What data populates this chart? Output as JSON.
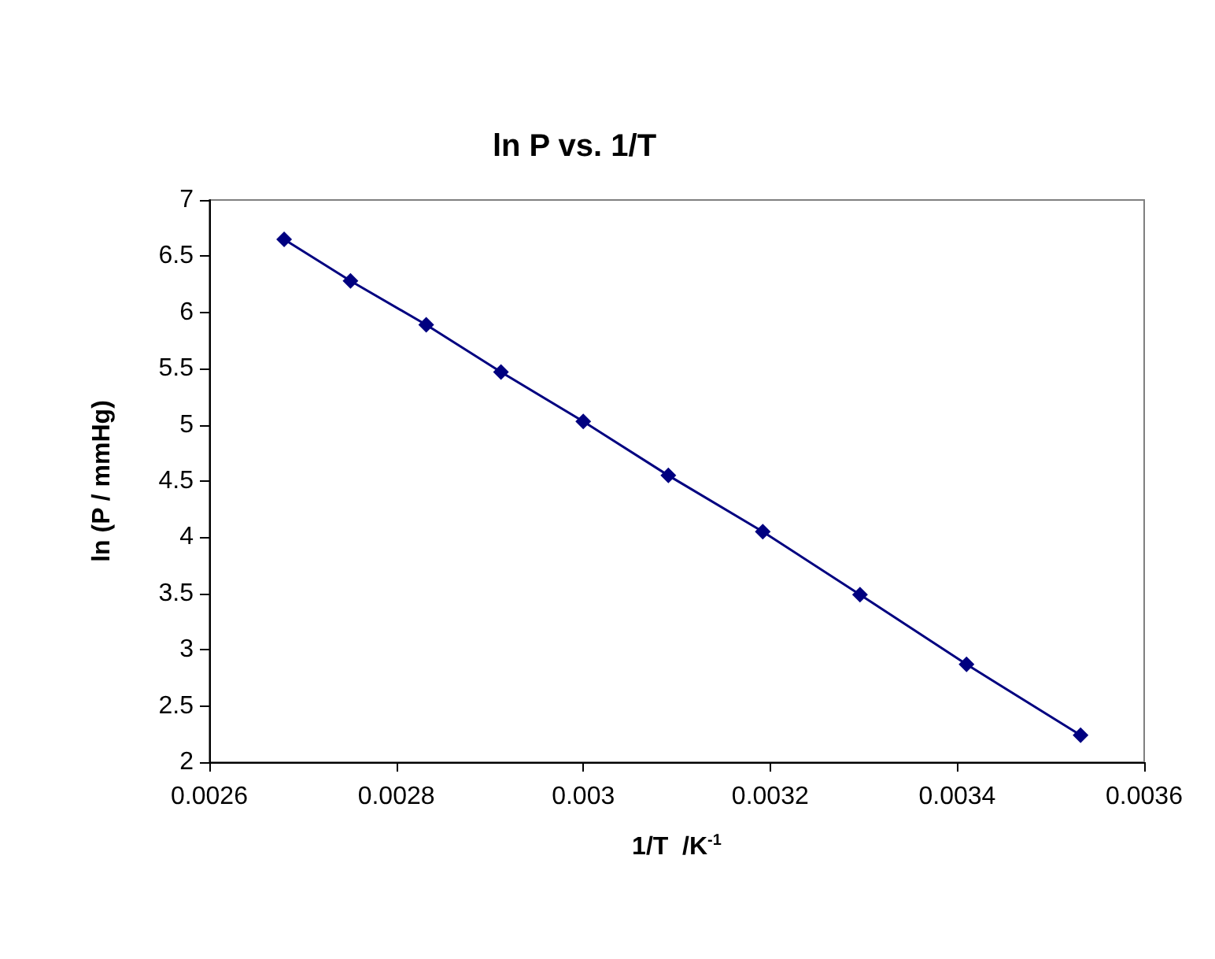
{
  "chart_data": {
    "type": "line",
    "title": "ln P vs. 1/T",
    "xlabel": "1/T  /K$^{-1}$",
    "ylabel": "ln (P / mmHg)",
    "x": [
      0.00268,
      0.002751,
      0.002832,
      0.002912,
      0.003,
      0.003091,
      0.003192,
      0.003296,
      0.00341,
      0.003532
    ],
    "series": [
      {
        "color": "#000080",
        "values": [
          6.65,
          6.28,
          5.89,
          5.47,
          5.03,
          4.55,
          4.05,
          3.49,
          2.87,
          2.24
        ]
      }
    ],
    "xlim": [
      0.0026,
      0.0036
    ],
    "xticks": [
      0.0026,
      0.0028,
      0.003,
      0.0032,
      0.0034,
      0.0036
    ],
    "ylim": [
      2,
      7
    ],
    "yticks": [
      2,
      2.5,
      3,
      3.5,
      4,
      4.5,
      5,
      5.5,
      6,
      6.5,
      7
    ],
    "marker": "diamond",
    "line_style": "solid"
  }
}
